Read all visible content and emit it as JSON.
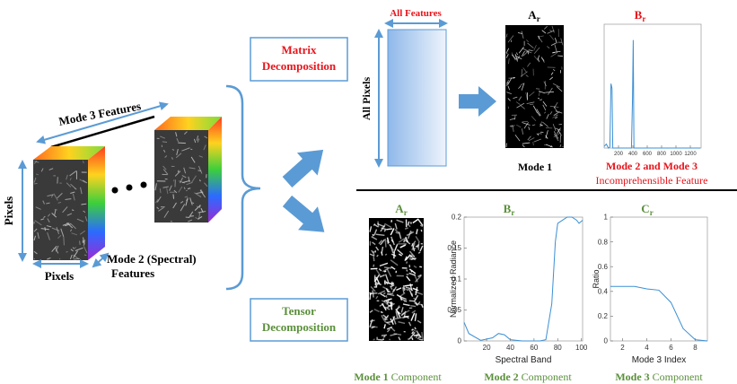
{
  "left": {
    "mode3": "Mode 3 Features",
    "pixels_v": "Pixels",
    "pixels_h": "Pixels",
    "mode2_line1": "Mode 2 (Spectral)",
    "mode2_line2": "Features"
  },
  "matrix": {
    "box": [
      "Matrix",
      "Decomposition"
    ],
    "all_features": "All Features",
    "all_pixels": "All Pixels",
    "a_title": {
      "main": "A",
      "sub": "r"
    },
    "mode1": "Mode 1",
    "b_title": {
      "main": "B",
      "sub": "r"
    },
    "caption1": "Mode 2 and Mode 3",
    "caption2": "Incomprehensible Feature",
    "b_chart": {
      "type": "line",
      "color": "#3b8fd4",
      "x": [
        0,
        30,
        60,
        80,
        95,
        110,
        120,
        380,
        395,
        405,
        415,
        1340
      ],
      "values": [
        0.003,
        0.008,
        0,
        0.002,
        0.13,
        0.12,
        0,
        0,
        0.1,
        0.218,
        0,
        0
      ],
      "xlim": [
        0,
        1350
      ],
      "ylim": [
        0,
        0.25
      ],
      "xticks": [
        200,
        400,
        600,
        800,
        1000,
        1200
      ]
    }
  },
  "tensor": {
    "box": [
      "Tensor",
      "Decomposition"
    ],
    "a_title": {
      "main": "A",
      "sub": "r"
    },
    "b_title": {
      "main": "B",
      "sub": "r"
    },
    "c_title": {
      "main": "C",
      "sub": "r"
    },
    "b_chart": {
      "type": "line",
      "color": "#3b8fd4",
      "xlabel": "Spectral Band",
      "ylabel": "Normalized Radiance",
      "x": [
        1,
        5,
        15,
        25,
        30,
        35,
        40,
        50,
        65,
        70,
        75,
        78,
        80,
        84,
        88,
        92,
        96,
        98,
        101
      ],
      "values": [
        0.03,
        0.012,
        0.001,
        0.005,
        0.012,
        0.01,
        0.002,
        0,
        0,
        0.002,
        0.06,
        0.16,
        0.19,
        0.195,
        0.2,
        0.2,
        0.195,
        0.19,
        0.195
      ],
      "xlim": [
        1,
        101
      ],
      "ylim": [
        0,
        0.2
      ],
      "xticks": [
        20,
        40,
        60,
        80,
        100
      ],
      "yticks": [
        0,
        0.05,
        0.1,
        0.15,
        0.2
      ]
    },
    "c_chart": {
      "type": "line",
      "color": "#3b8fd4",
      "xlabel": "Mode 3 Index",
      "ylabel": "Ratio",
      "x": [
        1,
        2,
        3,
        4,
        5,
        6,
        7,
        8,
        9
      ],
      "values": [
        0.44,
        0.44,
        0.44,
        0.42,
        0.41,
        0.31,
        0.1,
        0.01,
        0
      ],
      "xlim": [
        1,
        9
      ],
      "ylim": [
        0,
        1
      ],
      "xticks": [
        2,
        4,
        6,
        8
      ],
      "yticks": [
        0,
        0.2,
        0.4,
        0.6,
        0.8,
        1
      ]
    },
    "captions": [
      {
        "bold": "Mode 1",
        "rest": "Component"
      },
      {
        "bold": "Mode 2",
        "rest": "Component"
      },
      {
        "bold": "Mode 3",
        "rest": "Component"
      }
    ]
  }
}
